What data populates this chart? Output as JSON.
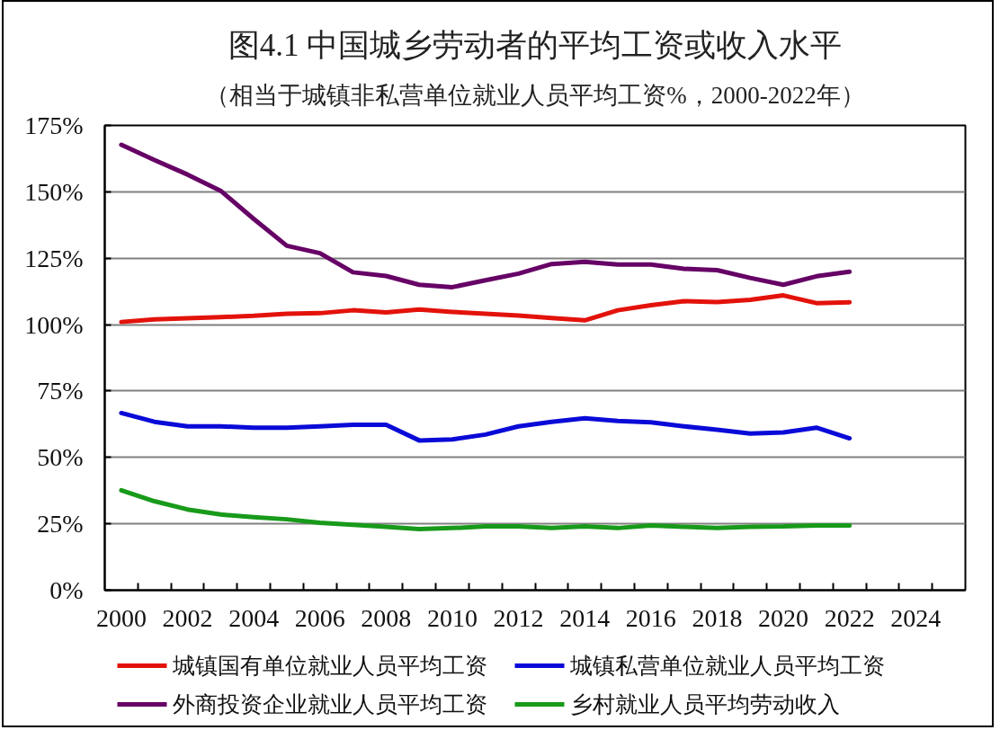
{
  "chart_data": {
    "type": "line",
    "title": "图4.1 中国城乡劳动者的平均工资或收入水平",
    "subtitle": "（相当于城镇非私营单位就业人员平均工资%，2000-2022年）",
    "categories": [
      "2000",
      null,
      "2002",
      null,
      "2004",
      null,
      "2006",
      null,
      "2008",
      null,
      "2010",
      null,
      "2012",
      null,
      "2014",
      null,
      "2016",
      null,
      "2018",
      null,
      "2020",
      null,
      "2022",
      null,
      "2024",
      null
    ],
    "series": [
      {
        "name": "城镇国有单位就业人员平均工资",
        "color": "#e3120b",
        "values": [
          101,
          102,
          102.4,
          102.8,
          103.3,
          104.1,
          104.3,
          105.4,
          104.6,
          105.7,
          104.8,
          104.1,
          103.4,
          102.5,
          101.6,
          105.4,
          107.3,
          108.8,
          108.5,
          109.3,
          111,
          108.1,
          108.4,
          null,
          null,
          null
        ]
      },
      {
        "name": "城镇私营单位就业人员平均工资",
        "color": "#0a0ad8",
        "values": [
          66.7,
          63.4,
          61.7,
          61.7,
          61.2,
          61.2,
          61.7,
          62.3,
          62.3,
          56.4,
          56.8,
          58.6,
          61.7,
          63.4,
          64.7,
          63.7,
          63.2,
          61.7,
          60.4,
          59,
          59.4,
          61.2,
          57.2,
          null,
          null,
          null
        ]
      },
      {
        "name": "外商投资企业就业人员平均工资",
        "color": "#660066",
        "values": [
          167.7,
          162,
          156.5,
          150.4,
          139.8,
          129.7,
          126.9,
          119.7,
          118.3,
          115,
          114.1,
          116.7,
          119.2,
          122.8,
          123.6,
          122.6,
          122.6,
          121,
          120.5,
          117.6,
          115,
          118.2,
          119.9,
          null,
          null,
          null
        ]
      },
      {
        "name": "乡村就业人员平均劳动收入",
        "color": "#189a1a",
        "values": [
          37.6,
          33.5,
          30.4,
          28.5,
          27.5,
          26.7,
          25.4,
          24.6,
          23.9,
          23,
          23.4,
          24,
          24,
          23.4,
          24,
          23.4,
          24.4,
          23.9,
          23.4,
          23.9,
          24,
          24.4,
          24.4,
          null,
          null,
          null
        ]
      }
    ],
    "ylim": [
      0,
      175
    ],
    "yticks": [
      {
        "value": 0,
        "label": "0%"
      },
      {
        "value": 25,
        "label": "25%"
      },
      {
        "value": 50,
        "label": "50%"
      },
      {
        "value": 75,
        "label": "75%"
      },
      {
        "value": 100,
        "label": "100%"
      },
      {
        "value": 125,
        "label": "125%"
      },
      {
        "value": 150,
        "label": "150%"
      },
      {
        "value": 175,
        "label": "175%"
      }
    ],
    "grid": "y",
    "legend": "bottom",
    "marker": "none",
    "line_style": "solid"
  }
}
